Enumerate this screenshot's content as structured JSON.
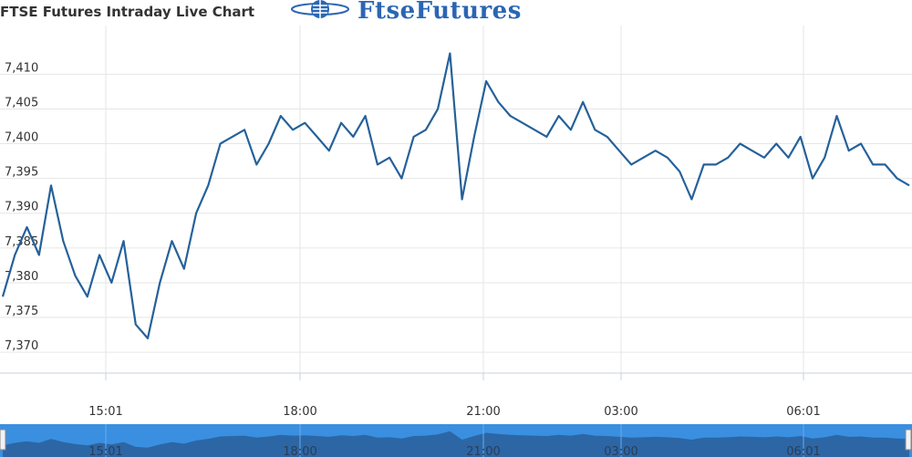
{
  "brand": {
    "name": "FtseFutures",
    "logo_icon": "globe-icon",
    "color": "#2a66b4"
  },
  "chart_data": {
    "type": "line",
    "title": "FTSE Futures Intraday Live Chart",
    "xlabel": "",
    "ylabel": "",
    "ylim": [
      7367,
      7417
    ],
    "y_ticks": [
      7370,
      7375,
      7380,
      7385,
      7390,
      7395,
      7400,
      7405,
      7410
    ],
    "y_tick_labels": [
      "7,370",
      "7,375",
      "7,380",
      "7,385",
      "7,390",
      "7,395",
      "7,400",
      "7,405",
      "7,410"
    ],
    "x_ticks": [
      "15:01",
      "18:00",
      "21:00",
      "03:00",
      "06:01"
    ],
    "navigator_ticks": [
      "15:01",
      "18:00",
      "21:00",
      "03:00",
      "06:01"
    ],
    "grid": true,
    "line_color": "#25619a",
    "series": [
      {
        "x": [
          "13:23",
          "13:34",
          "13:46",
          "13:57",
          "14:09",
          "14:21",
          "14:32",
          "14:44",
          "14:55",
          "15:07",
          "15:18",
          "15:30",
          "15:41",
          "15:53",
          "16:05",
          "16:16",
          "16:28",
          "16:39",
          "16:51",
          "17:02",
          "17:14",
          "17:26",
          "17:37",
          "17:49",
          "18:00",
          "18:12",
          "18:23",
          "18:35",
          "18:47",
          "18:58",
          "19:10",
          "19:21",
          "19:33",
          "19:44",
          "19:56",
          "20:08",
          "20:19",
          "20:31",
          "20:42",
          "20:54",
          "21:05",
          "21:17",
          "21:28",
          "21:40",
          "21:51",
          "22:03",
          "22:15",
          "22:26",
          "02:00",
          "02:12",
          "02:23",
          "02:35",
          "02:47",
          "02:58",
          "03:10",
          "03:21",
          "03:33",
          "03:44",
          "03:56",
          "04:08",
          "04:19",
          "04:31",
          "04:42",
          "04:54",
          "05:05",
          "05:17",
          "05:29",
          "05:40",
          "05:52",
          "06:03",
          "06:15",
          "06:26",
          "06:38",
          "06:49",
          "07:01",
          "07:12"
        ],
        "values": [
          7378,
          7384,
          7388,
          7384,
          7394,
          7386,
          7381,
          7378,
          7384,
          7380,
          7386,
          7374,
          7372,
          7380,
          7386,
          7382,
          7390,
          7394,
          7400,
          7401,
          7402,
          7397,
          7400,
          7404,
          7402,
          7403,
          7401,
          7399,
          7403,
          7401,
          7404,
          7397,
          7398,
          7395,
          7401,
          7402,
          7405,
          7413,
          7392,
          7401,
          7409,
          7406,
          7404,
          7403,
          7402,
          7401,
          7404,
          7402,
          7406,
          7402,
          7401,
          7399,
          7397,
          7398,
          7399,
          7398,
          7396,
          7392,
          7397,
          7397,
          7398,
          7400,
          7399,
          7398,
          7400,
          7398,
          7401,
          7395,
          7398,
          7404,
          7399,
          7400,
          7397,
          7397,
          7395,
          7394
        ]
      }
    ]
  }
}
